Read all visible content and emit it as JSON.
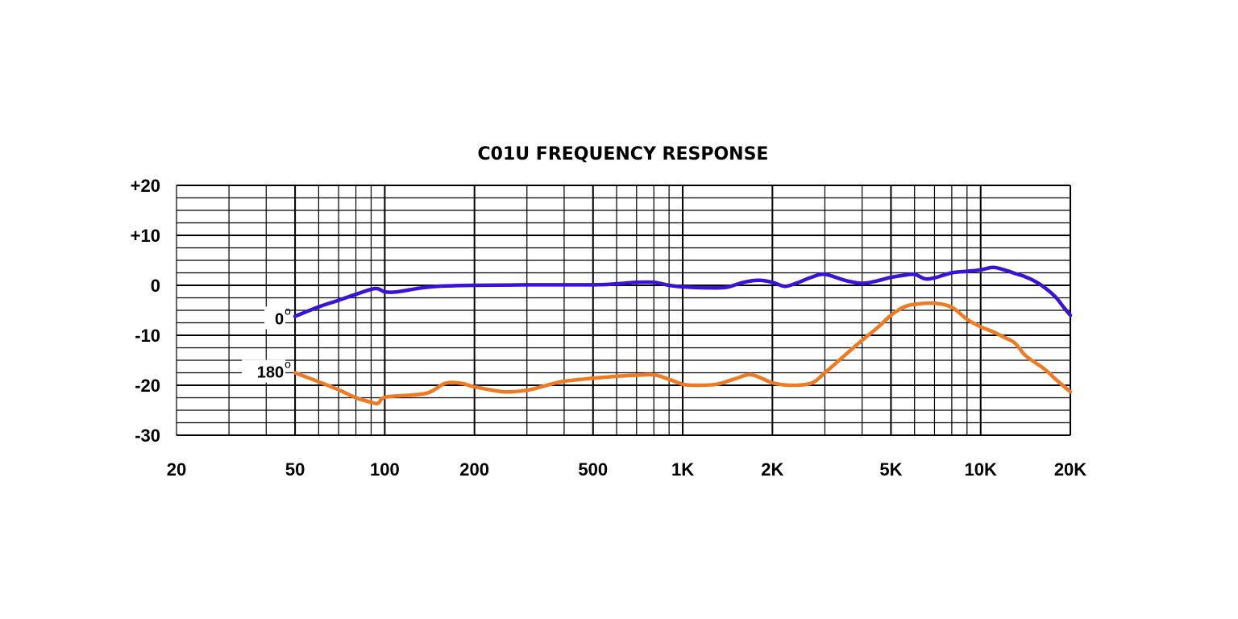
{
  "chart_data": {
    "type": "line",
    "title": "C01U FREQUENCY RESPONSE",
    "xscale": "log",
    "xlim": [
      20,
      20000
    ],
    "ylim": [
      -30,
      20
    ],
    "yticks": [
      {
        "value": 20,
        "label": "+20"
      },
      {
        "value": 10,
        "label": "+10"
      },
      {
        "value": 0,
        "label": "0"
      },
      {
        "value": -10,
        "label": "-10"
      },
      {
        "value": -20,
        "label": "-20"
      },
      {
        "value": -30,
        "label": "-30"
      }
    ],
    "xticks": [
      {
        "value": 20,
        "label": "20"
      },
      {
        "value": 50,
        "label": "50"
      },
      {
        "value": 100,
        "label": "100"
      },
      {
        "value": 200,
        "label": "200"
      },
      {
        "value": 500,
        "label": "500"
      },
      {
        "value": 1000,
        "label": "1K"
      },
      {
        "value": 2000,
        "label": "2K"
      },
      {
        "value": 5000,
        "label": "5K"
      },
      {
        "value": 10000,
        "label": "10K"
      },
      {
        "value": 20000,
        "label": "20K"
      }
    ],
    "grid": true,
    "series": [
      {
        "name": "0",
        "label": "0",
        "degree": "o",
        "color": "#3a13d6",
        "points": [
          [
            50,
            -6.2
          ],
          [
            60,
            -4.3
          ],
          [
            70,
            -3.0
          ],
          [
            80,
            -1.8
          ],
          [
            90,
            -0.8
          ],
          [
            95,
            -0.7
          ],
          [
            100,
            -1.3
          ],
          [
            110,
            -1.3
          ],
          [
            130,
            -0.6
          ],
          [
            150,
            -0.2
          ],
          [
            200,
            0.0
          ],
          [
            300,
            0.1
          ],
          [
            500,
            0.1
          ],
          [
            600,
            0.3
          ],
          [
            700,
            0.6
          ],
          [
            800,
            0.6
          ],
          [
            900,
            0.0
          ],
          [
            1000,
            -0.3
          ],
          [
            1200,
            -0.5
          ],
          [
            1400,
            -0.4
          ],
          [
            1600,
            0.6
          ],
          [
            1800,
            1.0
          ],
          [
            2000,
            0.6
          ],
          [
            2200,
            -0.2
          ],
          [
            2400,
            0.4
          ],
          [
            2700,
            1.6
          ],
          [
            3000,
            2.2
          ],
          [
            3500,
            1.0
          ],
          [
            4000,
            0.4
          ],
          [
            4500,
            0.9
          ],
          [
            5000,
            1.6
          ],
          [
            5500,
            2.0
          ],
          [
            6000,
            2.2
          ],
          [
            6500,
            1.3
          ],
          [
            7000,
            1.5
          ],
          [
            8000,
            2.5
          ],
          [
            9000,
            2.8
          ],
          [
            10000,
            3.1
          ],
          [
            11000,
            3.6
          ],
          [
            12000,
            3.1
          ],
          [
            13000,
            2.4
          ],
          [
            14000,
            1.8
          ],
          [
            15000,
            1.0
          ],
          [
            16000,
            0.0
          ],
          [
            17000,
            -1.2
          ],
          [
            18000,
            -2.6
          ],
          [
            19000,
            -4.4
          ],
          [
            20000,
            -6.0
          ]
        ]
      },
      {
        "name": "180",
        "label": "180",
        "degree": "o",
        "color": "#f07a21",
        "points": [
          [
            50,
            -17.5
          ],
          [
            60,
            -19.3
          ],
          [
            70,
            -20.9
          ],
          [
            80,
            -22.5
          ],
          [
            90,
            -23.4
          ],
          [
            95,
            -23.6
          ],
          [
            100,
            -22.4
          ],
          [
            120,
            -22.0
          ],
          [
            140,
            -21.5
          ],
          [
            160,
            -19.6
          ],
          [
            180,
            -19.6
          ],
          [
            200,
            -20.3
          ],
          [
            250,
            -21.3
          ],
          [
            300,
            -21.0
          ],
          [
            350,
            -20.0
          ],
          [
            400,
            -19.2
          ],
          [
            500,
            -18.6
          ],
          [
            600,
            -18.2
          ],
          [
            700,
            -18.0
          ],
          [
            800,
            -17.9
          ],
          [
            900,
            -18.8
          ],
          [
            1000,
            -19.8
          ],
          [
            1100,
            -20.0
          ],
          [
            1300,
            -19.8
          ],
          [
            1500,
            -18.7
          ],
          [
            1700,
            -17.9
          ],
          [
            2000,
            -19.5
          ],
          [
            2300,
            -20.0
          ],
          [
            2700,
            -19.6
          ],
          [
            3000,
            -17.5
          ],
          [
            3500,
            -14.0
          ],
          [
            4000,
            -11.0
          ],
          [
            4500,
            -8.5
          ],
          [
            5000,
            -6.0
          ],
          [
            5500,
            -4.4
          ],
          [
            6000,
            -3.8
          ],
          [
            7000,
            -3.6
          ],
          [
            8000,
            -4.4
          ],
          [
            9000,
            -6.8
          ],
          [
            10000,
            -8.3
          ],
          [
            11000,
            -9.3
          ],
          [
            12000,
            -10.4
          ],
          [
            13000,
            -11.5
          ],
          [
            14000,
            -13.8
          ],
          [
            15000,
            -15.2
          ],
          [
            16000,
            -16.3
          ],
          [
            17000,
            -17.6
          ],
          [
            18000,
            -19.0
          ],
          [
            20000,
            -21.3
          ]
        ]
      }
    ]
  }
}
